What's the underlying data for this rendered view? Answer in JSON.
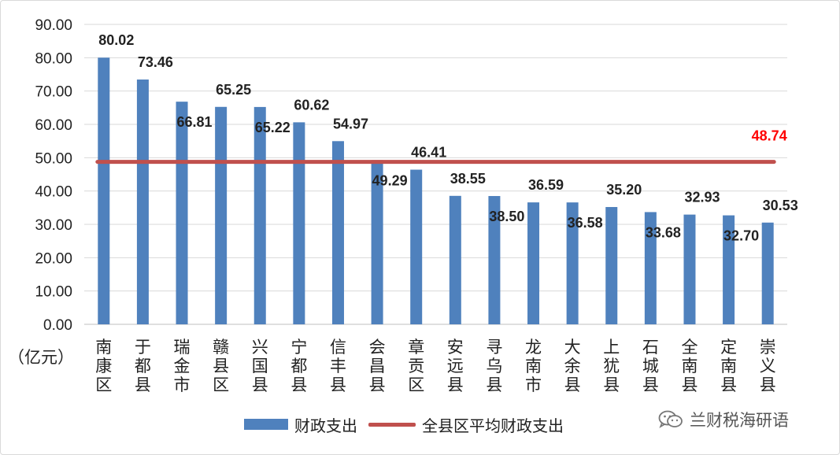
{
  "colors": {
    "bar": "#4f81bd",
    "avg_line": "#c0504d",
    "avg_label": "#ff0000",
    "grid": "#d9d9d9"
  },
  "y_unit_label": "（亿元）",
  "legend": {
    "bar_label": "财政支出",
    "line_label": "全县区平均财政支出"
  },
  "watermark": {
    "text": "兰财税海研语",
    "icon": "wechat-icon"
  },
  "chart_data": {
    "type": "bar",
    "categories": [
      "南康区",
      "于都县",
      "瑞金市",
      "赣县区",
      "兴国县",
      "宁都县",
      "信丰县",
      "会昌县",
      "章贡区",
      "安远县",
      "寻乌县",
      "龙南市",
      "大余县",
      "上犹县",
      "石城县",
      "全南县",
      "定南县",
      "崇义县"
    ],
    "series": [
      {
        "name": "财政支出",
        "type": "bar",
        "values": [
          80.02,
          73.46,
          66.81,
          65.25,
          65.22,
          60.62,
          54.97,
          49.29,
          46.41,
          38.55,
          38.5,
          36.59,
          36.58,
          35.2,
          33.68,
          32.93,
          32.7,
          30.53
        ]
      },
      {
        "name": "全县区平均财政支出",
        "type": "line",
        "value": 48.74
      }
    ],
    "data_labels": [
      "80.02",
      "73.46",
      "66.81",
      "65.25",
      "65.22",
      "60.62",
      "54.97",
      "49.29",
      "46.41",
      "38.55",
      "38.50",
      "36.59",
      "36.58",
      "35.20",
      "33.68",
      "32.93",
      "32.70",
      "30.53"
    ],
    "data_label_positions": [
      "above",
      "above",
      "inside",
      "above",
      "inside",
      "above",
      "above",
      "inside",
      "above",
      "above",
      "inside",
      "above",
      "inside",
      "above",
      "inside",
      "above",
      "inside",
      "above"
    ],
    "average_label": "48.74",
    "ylim": [
      0,
      90
    ],
    "yticks": [
      "0.00",
      "10.00",
      "20.00",
      "30.00",
      "40.00",
      "50.00",
      "60.00",
      "70.00",
      "80.00",
      "90.00"
    ],
    "grid": true,
    "legend_position": "bottom"
  }
}
